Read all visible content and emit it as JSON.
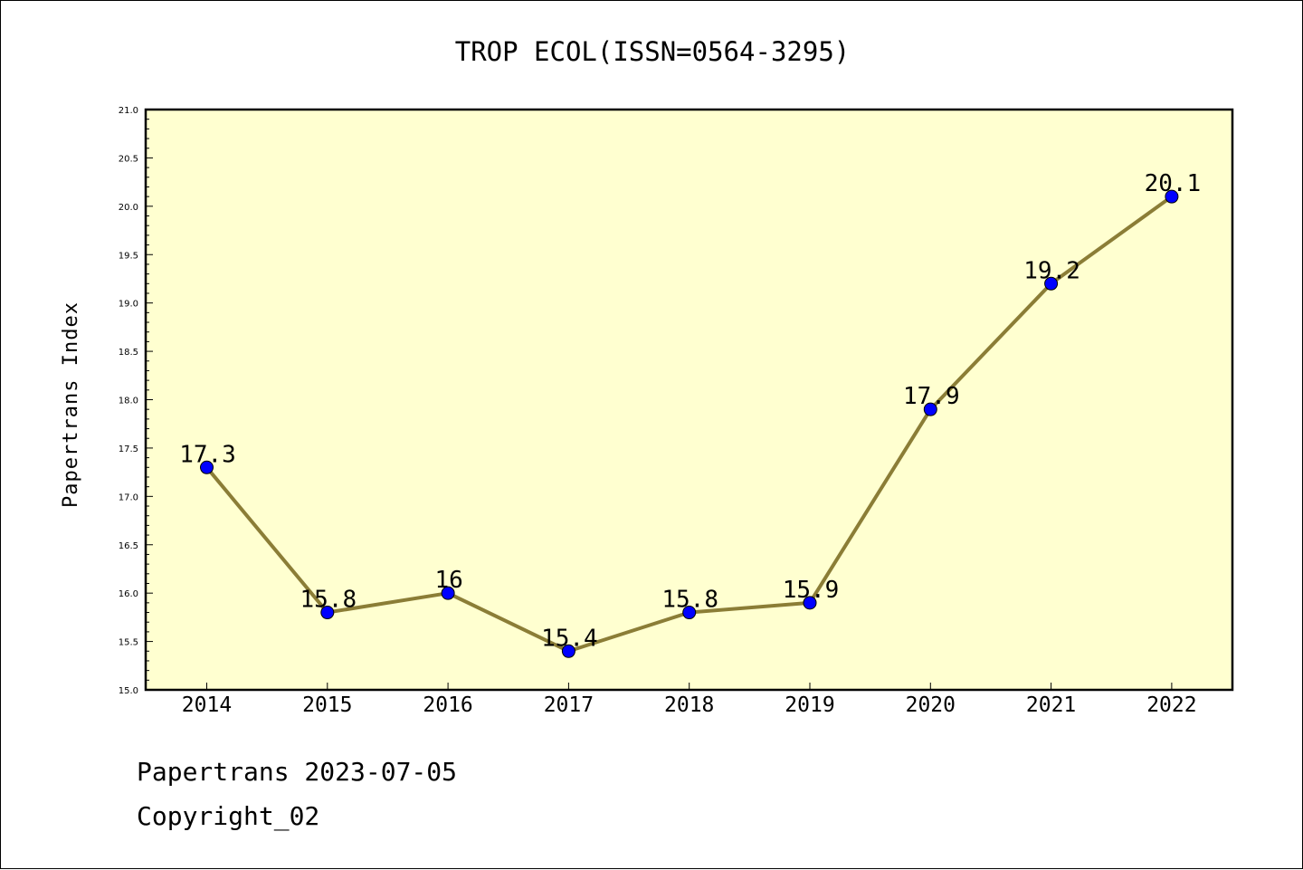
{
  "chart_data": {
    "type": "line",
    "title": "TROP ECOL(ISSN=0564-3295)",
    "xlabel": "",
    "ylabel": "Papertrans Index",
    "x": [
      "2014",
      "2015",
      "2016",
      "2017",
      "2018",
      "2019",
      "2020",
      "2021",
      "2022"
    ],
    "series": [
      {
        "values": [
          17.3,
          15.8,
          16,
          15.4,
          15.8,
          15.9,
          17.9,
          19.2,
          20.1
        ]
      }
    ],
    "data_labels": [
      "17.3",
      "15.8",
      "16",
      "15.4",
      "15.8",
      "15.9",
      "17.9",
      "19.2",
      "20.1"
    ],
    "ylim": [
      15.0,
      21.0
    ],
    "yticks": [
      "15.0",
      "15.5",
      "16.0",
      "16.5",
      "17.0",
      "17.5",
      "18.0",
      "18.5",
      "19.0",
      "19.5",
      "20.0",
      "20.5",
      "21.0"
    ],
    "grid": false,
    "legend": "none",
    "colors": {
      "plot_background": "#ffffd0",
      "line": "#8b7d36",
      "marker": "#0000ff"
    }
  },
  "footer": {
    "line1": "Papertrans 2023-07-05",
    "line2": "Copyright_02"
  }
}
